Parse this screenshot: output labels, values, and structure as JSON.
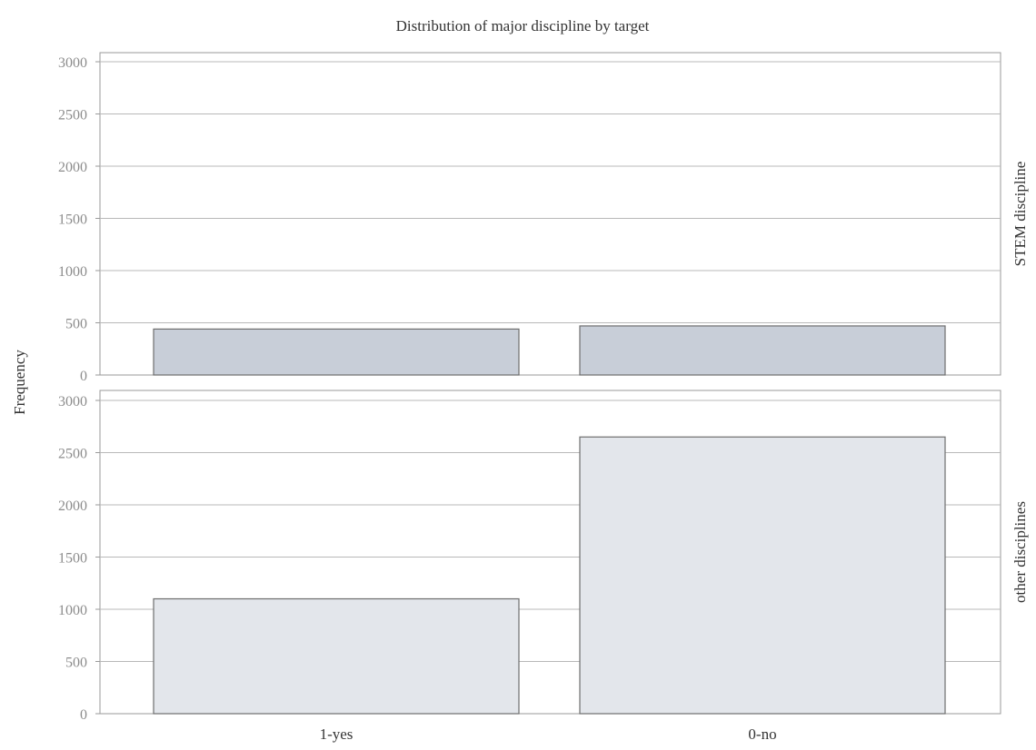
{
  "chart_data": {
    "type": "bar",
    "title": "Distribution of major discipline by target",
    "ylabel": "Frequency",
    "xlabel": "",
    "categories": [
      "1-yes",
      "0-no"
    ],
    "ylim": [
      0,
      3000
    ],
    "yticks": [
      0,
      500,
      1000,
      1500,
      2000,
      2500,
      3000
    ],
    "grid": true,
    "facets": [
      {
        "label": "STEM discipline",
        "values": [
          440,
          470
        ],
        "color": "#c8ced8"
      },
      {
        "label": "other disciplines",
        "values": [
          1100,
          2650
        ],
        "color": "#e3e6eb"
      }
    ]
  }
}
